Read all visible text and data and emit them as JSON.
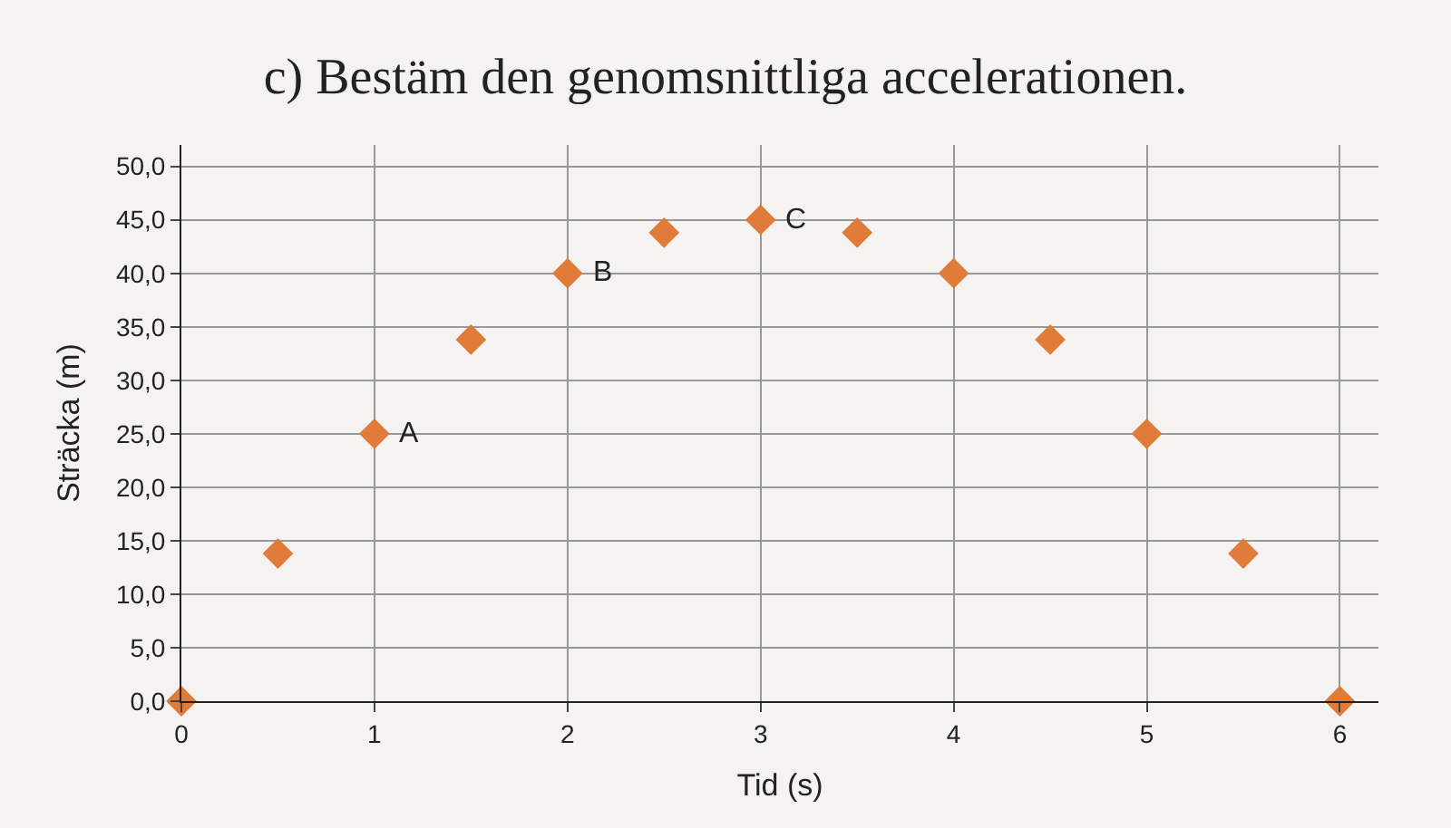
{
  "chart_data": {
    "type": "scatter",
    "title": "c) Bestäm den genomsnittliga accelerationen.",
    "xlabel": "Tid (s)",
    "ylabel": "Sträcka (m)",
    "x": [
      0,
      0.5,
      1,
      1.5,
      2,
      2.5,
      3,
      3.5,
      4,
      4.5,
      5,
      5.5,
      6
    ],
    "series": [
      {
        "color": "#e07b39",
        "values": [
          0,
          13.8,
          25,
          33.8,
          40,
          43.8,
          45,
          43.8,
          40,
          33.8,
          25,
          13.8,
          0
        ]
      }
    ],
    "marker": "diamond",
    "grid": true,
    "xlim": [
      0,
      6.2
    ],
    "xticks": [
      0,
      1,
      2,
      3,
      4,
      5,
      6
    ],
    "ylim": [
      0,
      52
    ],
    "yticks": [
      {
        "value": 0,
        "label": "0,0"
      },
      {
        "value": 5,
        "label": "5,0"
      },
      {
        "value": 10,
        "label": "10,0"
      },
      {
        "value": 15,
        "label": "15,0"
      },
      {
        "value": 20,
        "label": "20,0"
      },
      {
        "value": 25,
        "label": "25,0"
      },
      {
        "value": 30,
        "label": "30,0"
      },
      {
        "value": 35,
        "label": "35,0"
      },
      {
        "value": 40,
        "label": "40,0"
      },
      {
        "value": 45,
        "label": "45,0"
      },
      {
        "value": 50,
        "label": "50,0"
      }
    ],
    "annotations": [
      {
        "text": "A",
        "x": 1,
        "y": 25
      },
      {
        "text": "B",
        "x": 2,
        "y": 40
      },
      {
        "text": "C",
        "x": 3,
        "y": 45
      }
    ]
  }
}
